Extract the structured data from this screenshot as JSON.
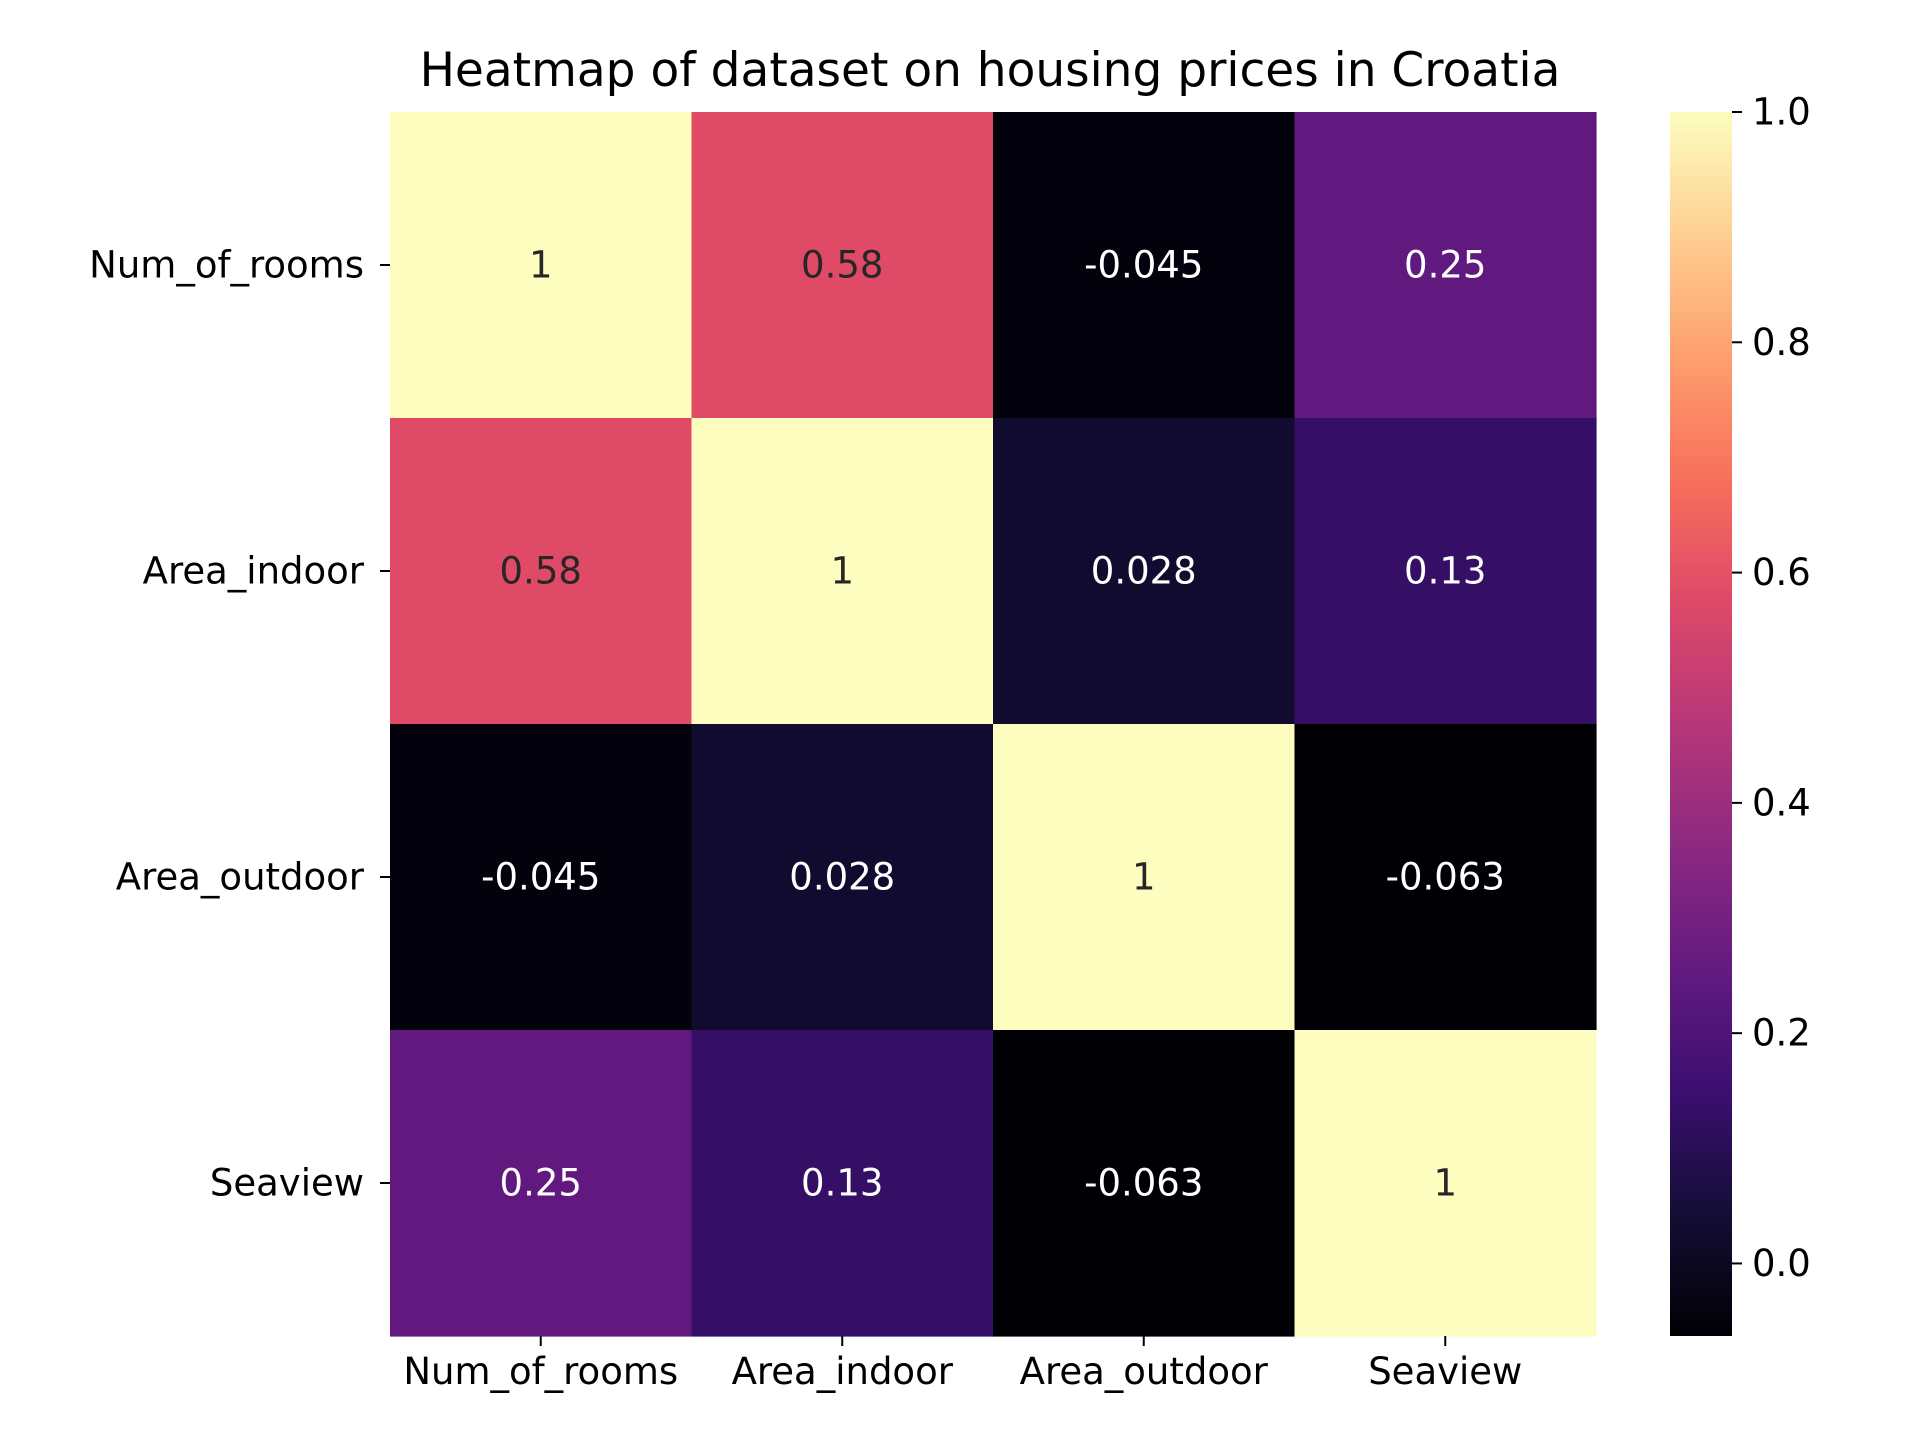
{
  "chart_data": {
    "type": "heatmap",
    "title": "Heatmap of dataset on housing prices in Croatia",
    "rows": [
      "Num_of_rooms",
      "Area_indoor",
      "Area_outdoor",
      "Seaview"
    ],
    "columns": [
      "Num_of_rooms",
      "Area_indoor",
      "Area_outdoor",
      "Seaview"
    ],
    "values": [
      [
        1,
        0.58,
        -0.045,
        0.25
      ],
      [
        0.58,
        1,
        0.028,
        0.13
      ],
      [
        -0.045,
        0.028,
        1,
        -0.063
      ],
      [
        0.25,
        0.13,
        -0.063,
        1
      ]
    ],
    "annotations": [
      [
        "1",
        "0.58",
        "-0.045",
        "0.25"
      ],
      [
        "0.58",
        "1",
        "0.028",
        "0.13"
      ],
      [
        "-0.045",
        "0.028",
        "1",
        "-0.063"
      ],
      [
        "0.25",
        "0.13",
        "-0.063",
        "1"
      ]
    ],
    "colormap": "magma",
    "colorbar": {
      "range": [
        -0.063,
        1.0
      ],
      "ticks": [
        0.0,
        0.2,
        0.4,
        0.6,
        0.8,
        1.0
      ],
      "tick_labels": [
        "0.0",
        "0.2",
        "0.4",
        "0.6",
        "0.8",
        "1.0"
      ]
    },
    "colors": {
      "magma_stops": [
        "#000004",
        "#140e36",
        "#3b0f70",
        "#641a80",
        "#8c2981",
        "#b73779",
        "#de4968",
        "#f7705c",
        "#fe9f6d",
        "#fecf92",
        "#fcfdbf"
      ],
      "dark_text": "#262626",
      "light_text": "#ffffff"
    }
  }
}
